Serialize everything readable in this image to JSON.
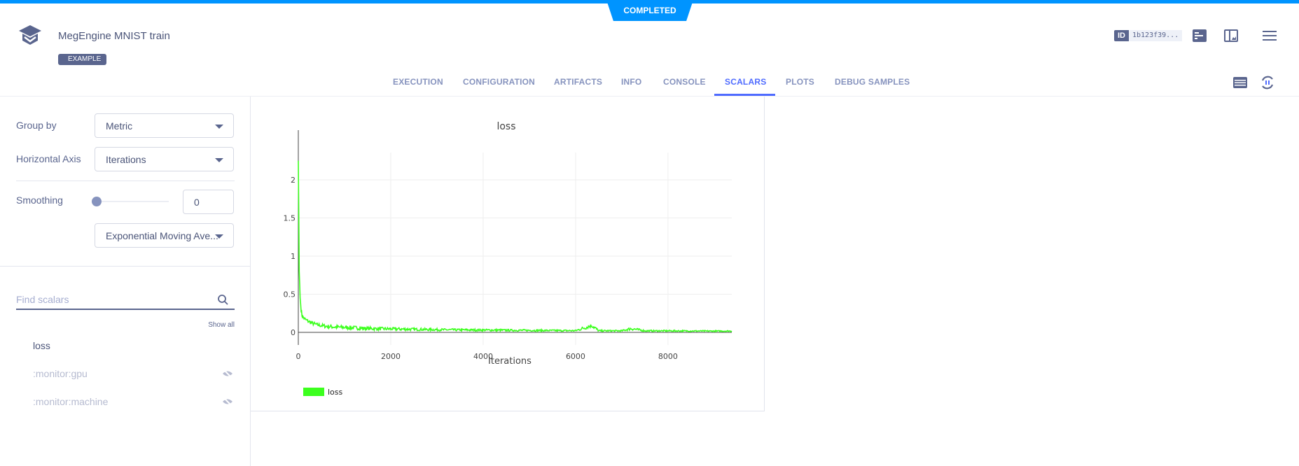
{
  "status": "COMPLETED",
  "header": {
    "title": "MegEngine MNIST train",
    "tag": "EXAMPLE",
    "id_label": "ID",
    "id_value": "1b123f39..."
  },
  "tabs": [
    "EXECUTION",
    "CONFIGURATION",
    "ARTIFACTS",
    "INFO",
    "CONSOLE",
    "SCALARS",
    "PLOTS",
    "DEBUG SAMPLES"
  ],
  "active_tab": "SCALARS",
  "controls": {
    "group_by_label": "Group by",
    "group_by_value": "Metric",
    "haxis_label": "Horizontal Axis",
    "haxis_value": "Iterations",
    "smoothing_label": "Smoothing",
    "smoothing_value": "0",
    "smoothing_fraction": 0,
    "smoothing_method": "Exponential Moving Ave..."
  },
  "search": {
    "placeholder": "Find scalars",
    "show_all": "Show all"
  },
  "scalars": [
    {
      "label": "loss",
      "visible": true
    },
    {
      "label": ":monitor:gpu",
      "visible": false
    },
    {
      "label": ":monitor:machine",
      "visible": false
    }
  ],
  "colors": {
    "accent": "#0094ff",
    "tab_active": "#4f6bff",
    "series": "#3cff1e"
  },
  "chart_data": {
    "type": "line",
    "title": "loss",
    "xlabel": "Iterations",
    "ylabel": "",
    "xlim": [
      0,
      9380
    ],
    "ylim": [
      -0.08,
      2.35
    ],
    "xticks": [
      "0",
      "2000",
      "4000",
      "6000",
      "8000"
    ],
    "xtick_values": [
      0,
      2000,
      4000,
      6000,
      8000
    ],
    "yticks": [
      "0",
      "0.5",
      "1",
      "1.5",
      "2"
    ],
    "ytick_values": [
      0,
      0.5,
      1,
      1.5,
      2
    ],
    "grid": true,
    "legend": "bottom-left",
    "series": [
      {
        "name": "loss",
        "x": [
          0,
          10,
          20,
          40,
          60,
          80,
          100,
          150,
          200,
          300,
          400,
          500,
          600,
          800,
          1000,
          1200,
          1500,
          2000,
          2500,
          3000,
          3500,
          4000,
          4500,
          5000,
          5500,
          6000,
          6350,
          6500,
          7000,
          7200,
          7500,
          8000,
          8500,
          9000,
          9380
        ],
        "y": [
          2.25,
          1.5,
          0.8,
          0.45,
          0.3,
          0.22,
          0.2,
          0.17,
          0.15,
          0.12,
          0.1,
          0.09,
          0.08,
          0.07,
          0.065,
          0.06,
          0.05,
          0.045,
          0.04,
          0.035,
          0.032,
          0.03,
          0.028,
          0.026,
          0.024,
          0.022,
          0.09,
          0.021,
          0.02,
          0.05,
          0.02,
          0.02,
          0.018,
          0.017,
          0.017
        ]
      }
    ]
  }
}
